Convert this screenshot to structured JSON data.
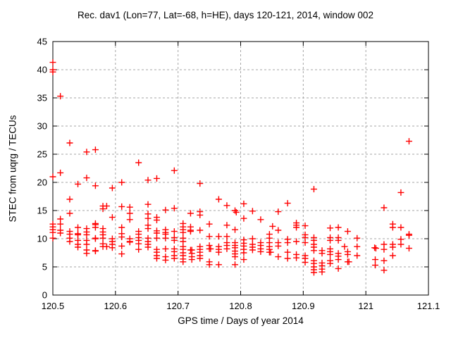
{
  "title": "Rec. dav1 (Lon=77, Lat=-68, h=HE), days 120-121, 2014, window 002",
  "chart_data": {
    "type": "scatter",
    "title": "Rec. dav1 (Lon=77, Lat=-68, h=HE), days 120-121, 2014, window 002",
    "xlabel": "GPS time / Days of year 2014",
    "ylabel": "STEC from uqrg / TECUs",
    "xlim": [
      120.5,
      121.1
    ],
    "ylim": [
      0,
      45
    ],
    "grid": true,
    "grid_color": "#a6a6a6",
    "border_color": "#000000",
    "x_ticks": [
      {
        "v": 120.5,
        "label": "120.5"
      },
      {
        "v": 120.6,
        "label": "120.6"
      },
      {
        "v": 120.7,
        "label": "120.7"
      },
      {
        "v": 120.8,
        "label": "120.8"
      },
      {
        "v": 120.9,
        "label": "120.9"
      },
      {
        "v": 121.0,
        "label": "121"
      },
      {
        "v": 121.1,
        "label": "121.1"
      }
    ],
    "y_ticks": [
      {
        "v": 0,
        "label": "0"
      },
      {
        "v": 5,
        "label": "5"
      },
      {
        "v": 10,
        "label": "10"
      },
      {
        "v": 15,
        "label": "15"
      },
      {
        "v": 20,
        "label": "20"
      },
      {
        "v": 25,
        "label": "25"
      },
      {
        "v": 30,
        "label": "30"
      },
      {
        "v": 35,
        "label": "35"
      },
      {
        "v": 40,
        "label": "40"
      },
      {
        "v": 45,
        "label": "45"
      }
    ],
    "series": [
      {
        "name": "STEC",
        "marker": "plus",
        "color": "#ff0000",
        "points": [
          [
            120.5,
            41.3
          ],
          [
            120.5,
            40.0
          ],
          [
            120.5,
            39.6
          ],
          [
            120.5,
            21.0
          ],
          [
            120.5,
            12.6
          ],
          [
            120.5,
            12.1
          ],
          [
            120.5,
            11.6
          ],
          [
            120.5,
            11.1
          ],
          [
            120.5,
            10.1
          ],
          [
            120.512,
            35.3
          ],
          [
            120.512,
            21.7
          ],
          [
            120.512,
            13.5
          ],
          [
            120.512,
            12.6
          ],
          [
            120.512,
            11.5
          ],
          [
            120.512,
            11.0
          ],
          [
            120.527,
            27.0
          ],
          [
            120.527,
            17.0
          ],
          [
            120.527,
            14.5
          ],
          [
            120.527,
            11.3
          ],
          [
            120.527,
            10.8
          ],
          [
            120.527,
            10.1
          ],
          [
            120.527,
            9.5
          ],
          [
            120.54,
            19.7
          ],
          [
            120.54,
            12.0
          ],
          [
            120.54,
            10.9
          ],
          [
            120.54,
            10.7
          ],
          [
            120.54,
            9.7
          ],
          [
            120.54,
            9.0
          ],
          [
            120.54,
            8.5
          ],
          [
            120.554,
            25.4
          ],
          [
            120.554,
            20.8
          ],
          [
            120.554,
            11.8
          ],
          [
            120.554,
            11.2
          ],
          [
            120.554,
            10.7
          ],
          [
            120.554,
            9.7
          ],
          [
            120.554,
            9.0
          ],
          [
            120.554,
            8.0
          ],
          [
            120.554,
            7.4
          ],
          [
            120.568,
            25.8
          ],
          [
            120.568,
            19.4
          ],
          [
            120.568,
            12.7
          ],
          [
            120.568,
            12.5
          ],
          [
            120.568,
            12.0
          ],
          [
            120.568,
            10.1
          ],
          [
            120.568,
            10.0
          ],
          [
            120.568,
            7.9
          ],
          [
            120.568,
            7.8
          ],
          [
            120.58,
            15.8
          ],
          [
            120.58,
            15.3
          ],
          [
            120.58,
            11.8
          ],
          [
            120.58,
            11.2
          ],
          [
            120.58,
            10.7
          ],
          [
            120.58,
            10.1
          ],
          [
            120.58,
            9.1
          ],
          [
            120.58,
            8.6
          ],
          [
            120.586,
            15.8
          ],
          [
            120.586,
            8.6
          ],
          [
            120.595,
            19.0
          ],
          [
            120.595,
            13.8
          ],
          [
            120.595,
            10.0
          ],
          [
            120.595,
            9.5
          ],
          [
            120.595,
            9.0
          ],
          [
            120.595,
            8.4
          ],
          [
            120.61,
            20.0
          ],
          [
            120.61,
            15.7
          ],
          [
            120.61,
            12.0
          ],
          [
            120.61,
            10.9
          ],
          [
            120.61,
            10.3
          ],
          [
            120.61,
            8.7
          ],
          [
            120.61,
            7.3
          ],
          [
            120.623,
            15.6
          ],
          [
            120.623,
            14.5
          ],
          [
            120.623,
            13.4
          ],
          [
            120.623,
            10.0
          ],
          [
            120.623,
            9.5
          ],
          [
            120.623,
            9.4
          ],
          [
            120.637,
            23.5
          ],
          [
            120.637,
            11.3
          ],
          [
            120.637,
            10.8
          ],
          [
            120.637,
            10.2
          ],
          [
            120.637,
            9.7
          ],
          [
            120.637,
            9.1
          ],
          [
            120.637,
            8.1
          ],
          [
            120.652,
            20.4
          ],
          [
            120.652,
            16.1
          ],
          [
            120.652,
            14.4
          ],
          [
            120.652,
            13.6
          ],
          [
            120.652,
            12.4
          ],
          [
            120.652,
            11.8
          ],
          [
            120.652,
            10.1
          ],
          [
            120.652,
            9.5
          ],
          [
            120.652,
            9.0
          ],
          [
            120.652,
            8.5
          ],
          [
            120.666,
            20.7
          ],
          [
            120.666,
            13.8
          ],
          [
            120.666,
            13.3
          ],
          [
            120.666,
            11.4
          ],
          [
            120.666,
            11.0
          ],
          [
            120.666,
            10.1
          ],
          [
            120.666,
            8.1
          ],
          [
            120.666,
            7.6
          ],
          [
            120.666,
            7.0
          ],
          [
            120.666,
            6.5
          ],
          [
            120.68,
            15.1
          ],
          [
            120.68,
            11.6
          ],
          [
            120.68,
            11.1
          ],
          [
            120.68,
            10.8
          ],
          [
            120.68,
            10.1
          ],
          [
            120.68,
            8.2
          ],
          [
            120.68,
            6.8
          ],
          [
            120.68,
            6.2
          ],
          [
            120.694,
            22.1
          ],
          [
            120.694,
            15.4
          ],
          [
            120.694,
            11.3
          ],
          [
            120.694,
            10.2
          ],
          [
            120.694,
            9.7
          ],
          [
            120.694,
            8.2
          ],
          [
            120.694,
            7.7
          ],
          [
            120.694,
            7.0
          ],
          [
            120.694,
            6.5
          ],
          [
            120.708,
            12.7
          ],
          [
            120.708,
            12.1
          ],
          [
            120.708,
            11.6
          ],
          [
            120.708,
            11.1
          ],
          [
            120.708,
            10.1
          ],
          [
            120.708,
            9.5
          ],
          [
            120.708,
            8.6
          ],
          [
            120.708,
            8.1
          ],
          [
            120.708,
            7.5
          ],
          [
            120.708,
            7.0
          ],
          [
            120.708,
            6.4
          ],
          [
            120.708,
            5.9
          ],
          [
            120.72,
            14.5
          ],
          [
            120.72,
            12.1
          ],
          [
            120.72,
            11.5
          ],
          [
            120.72,
            11.3
          ],
          [
            120.72,
            8.0
          ],
          [
            120.722,
            8.0
          ],
          [
            120.722,
            7.4
          ],
          [
            120.722,
            6.8
          ],
          [
            120.722,
            6.3
          ],
          [
            120.735,
            19.8
          ],
          [
            120.735,
            14.8
          ],
          [
            120.735,
            14.2
          ],
          [
            120.735,
            11.5
          ],
          [
            120.735,
            8.6
          ],
          [
            120.735,
            8.1
          ],
          [
            120.735,
            7.6
          ],
          [
            120.735,
            7.0
          ],
          [
            120.735,
            6.5
          ],
          [
            120.75,
            12.6
          ],
          [
            120.75,
            10.4
          ],
          [
            120.75,
            8.8
          ],
          [
            120.75,
            8.2
          ],
          [
            120.752,
            8.2
          ],
          [
            120.75,
            5.9
          ],
          [
            120.75,
            5.4
          ],
          [
            120.765,
            17.0
          ],
          [
            120.765,
            10.4
          ],
          [
            120.765,
            8.6
          ],
          [
            120.765,
            8.1
          ],
          [
            120.765,
            7.6
          ],
          [
            120.765,
            5.4
          ],
          [
            120.778,
            15.9
          ],
          [
            120.778,
            12.4
          ],
          [
            120.778,
            10.4
          ],
          [
            120.778,
            9.3
          ],
          [
            120.778,
            8.8
          ],
          [
            120.778,
            8.2
          ],
          [
            120.791,
            15.0
          ],
          [
            120.793,
            14.7
          ],
          [
            120.791,
            11.6
          ],
          [
            120.791,
            9.3
          ],
          [
            120.791,
            8.8
          ],
          [
            120.791,
            8.4
          ],
          [
            120.791,
            7.8
          ],
          [
            120.791,
            7.3
          ],
          [
            120.791,
            6.8
          ],
          [
            120.791,
            5.4
          ],
          [
            120.805,
            16.2
          ],
          [
            120.805,
            13.6
          ],
          [
            120.805,
            9.8
          ],
          [
            120.805,
            9.2
          ],
          [
            120.805,
            8.7
          ],
          [
            120.805,
            8.1
          ],
          [
            120.805,
            7.5
          ],
          [
            120.805,
            6.3
          ],
          [
            120.819,
            14.9
          ],
          [
            120.819,
            10.0
          ],
          [
            120.819,
            9.0
          ],
          [
            120.819,
            8.5
          ],
          [
            120.819,
            8.0
          ],
          [
            120.832,
            13.4
          ],
          [
            120.832,
            9.3
          ],
          [
            120.832,
            8.8
          ],
          [
            120.832,
            8.2
          ],
          [
            120.832,
            7.7
          ],
          [
            120.846,
            10.8
          ],
          [
            120.846,
            10.1
          ],
          [
            120.846,
            9.3
          ],
          [
            120.846,
            8.6
          ],
          [
            120.846,
            8.1
          ],
          [
            120.846,
            7.6
          ],
          [
            120.848,
            7.6
          ],
          [
            120.851,
            12.2
          ],
          [
            120.86,
            14.8
          ],
          [
            120.86,
            11.5
          ],
          [
            120.86,
            9.3
          ],
          [
            120.86,
            8.7
          ],
          [
            120.86,
            6.8
          ],
          [
            120.875,
            16.3
          ],
          [
            120.875,
            9.9
          ],
          [
            120.875,
            9.3
          ],
          [
            120.875,
            7.6
          ],
          [
            120.875,
            6.5
          ],
          [
            120.889,
            12.8
          ],
          [
            120.889,
            12.4
          ],
          [
            120.889,
            12.0
          ],
          [
            120.889,
            9.5
          ],
          [
            120.889,
            7.2
          ],
          [
            120.889,
            6.6
          ],
          [
            120.903,
            12.3
          ],
          [
            120.903,
            10.7
          ],
          [
            120.903,
            10.2
          ],
          [
            120.903,
            9.3
          ],
          [
            120.903,
            7.0
          ],
          [
            120.903,
            6.5
          ],
          [
            120.903,
            5.8
          ],
          [
            120.917,
            18.8
          ],
          [
            120.917,
            10.2
          ],
          [
            120.917,
            9.7
          ],
          [
            120.917,
            9.0
          ],
          [
            120.917,
            8.5
          ],
          [
            120.917,
            7.9
          ],
          [
            120.917,
            6.1
          ],
          [
            120.917,
            5.6
          ],
          [
            120.917,
            5.0
          ],
          [
            120.917,
            4.5
          ],
          [
            120.917,
            4.0
          ],
          [
            120.93,
            7.9
          ],
          [
            120.93,
            7.4
          ],
          [
            120.93,
            5.7
          ],
          [
            120.93,
            5.2
          ],
          [
            120.93,
            4.6
          ],
          [
            120.93,
            4.1
          ],
          [
            120.943,
            11.9
          ],
          [
            120.943,
            10.2
          ],
          [
            120.943,
            9.7
          ],
          [
            120.943,
            8.2
          ],
          [
            120.943,
            7.7
          ],
          [
            120.943,
            7.2
          ],
          [
            120.943,
            6.1
          ],
          [
            120.943,
            5.6
          ],
          [
            120.956,
            12.0
          ],
          [
            120.956,
            10.2
          ],
          [
            120.956,
            9.7
          ],
          [
            120.956,
            7.4
          ],
          [
            120.956,
            6.9
          ],
          [
            120.956,
            6.3
          ],
          [
            120.956,
            4.7
          ],
          [
            120.966,
            8.6
          ],
          [
            120.971,
            11.3
          ],
          [
            120.971,
            7.7
          ],
          [
            120.971,
            7.2
          ],
          [
            120.971,
            5.9
          ],
          [
            120.973,
            5.9
          ],
          [
            120.986,
            10.1
          ],
          [
            120.986,
            8.6
          ],
          [
            120.986,
            7.0
          ],
          [
            121.014,
            8.4
          ],
          [
            121.016,
            8.3
          ],
          [
            121.015,
            6.3
          ],
          [
            121.015,
            5.3
          ],
          [
            121.029,
            15.5
          ],
          [
            121.029,
            9.0
          ],
          [
            121.029,
            8.1
          ],
          [
            121.029,
            6.1
          ],
          [
            121.029,
            4.4
          ],
          [
            121.043,
            12.6
          ],
          [
            121.043,
            12.0
          ],
          [
            121.043,
            9.0
          ],
          [
            121.043,
            8.5
          ],
          [
            121.043,
            7.0
          ],
          [
            121.056,
            18.2
          ],
          [
            121.056,
            12.0
          ],
          [
            121.056,
            9.9
          ],
          [
            121.056,
            9.0
          ],
          [
            121.069,
            27.3
          ],
          [
            121.069,
            10.8
          ],
          [
            121.069,
            10.6
          ],
          [
            121.069,
            8.3
          ]
        ]
      }
    ]
  }
}
